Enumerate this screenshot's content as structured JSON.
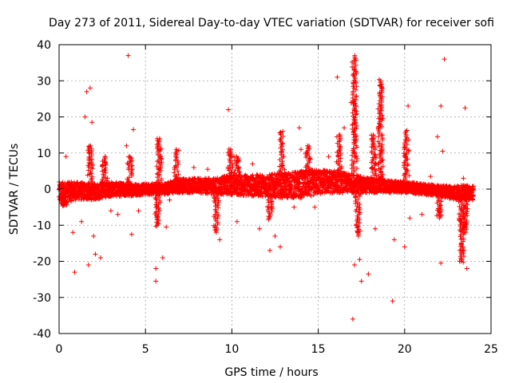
{
  "chart_data": {
    "type": "scatter",
    "title": "Day 273 of 2011, Sidereal Day-to-day VTEC variation (SDTVAR) for receiver sofi",
    "xlabel": "GPS time / hours",
    "ylabel": "SDTVAR / TECUs",
    "xlim": [
      0,
      25
    ],
    "ylim": [
      -40,
      40
    ],
    "x_ticks": [
      0,
      5,
      10,
      15,
      20,
      25
    ],
    "y_ticks": [
      -40,
      -30,
      -20,
      -10,
      0,
      10,
      20,
      30,
      40
    ],
    "grid": true,
    "marker": "+",
    "series_color": "#ff0000",
    "dense_band": {
      "x": [
        0,
        1,
        2,
        3,
        4,
        5,
        6,
        7,
        8,
        9,
        10,
        11,
        12,
        13,
        14,
        15,
        16,
        17,
        18,
        19,
        20,
        21,
        22,
        23,
        24
      ],
      "upper": [
        2,
        2,
        1.5,
        2,
        1.5,
        1.5,
        1.5,
        3,
        3,
        3,
        4,
        4,
        4,
        4.5,
        5,
        5.5,
        5,
        4,
        3,
        2.5,
        2,
        1.5,
        1,
        1,
        1
      ],
      "lower": [
        -4,
        -3,
        -3,
        -2,
        -2,
        -1.5,
        -1.5,
        -1,
        -1,
        -1.5,
        -1.5,
        -2,
        -2,
        -2.5,
        -2.5,
        -1.5,
        -1,
        -1,
        -1,
        -1,
        -1,
        -1.5,
        -2,
        -3,
        -3
      ]
    },
    "spikes": [
      {
        "x": 0.3,
        "peak": -4.5
      },
      {
        "x": 1.8,
        "peak": 12
      },
      {
        "x": 2.6,
        "peak": 9
      },
      {
        "x": 4.1,
        "peak": 9
      },
      {
        "x": 5.7,
        "peak": -10
      },
      {
        "x": 5.8,
        "peak": 14
      },
      {
        "x": 6.8,
        "peak": 11
      },
      {
        "x": 9.1,
        "peak": -12
      },
      {
        "x": 9.9,
        "peak": 11
      },
      {
        "x": 10.3,
        "peak": 9
      },
      {
        "x": 12.2,
        "peak": -8
      },
      {
        "x": 12.9,
        "peak": 16
      },
      {
        "x": 14.4,
        "peak": 12
      },
      {
        "x": 16.2,
        "peak": 15
      },
      {
        "x": 17.1,
        "peak": 37
      },
      {
        "x": 17.3,
        "peak": -13
      },
      {
        "x": 18.6,
        "peak": 30
      },
      {
        "x": 18.2,
        "peak": 15
      },
      {
        "x": 20.1,
        "peak": 16
      },
      {
        "x": 22.0,
        "peak": -8
      },
      {
        "x": 23.3,
        "peak": -20
      },
      {
        "x": 23.5,
        "peak": -12
      }
    ],
    "outliers": [
      [
        0.9,
        -23
      ],
      [
        1.5,
        20
      ],
      [
        1.6,
        27
      ],
      [
        1.8,
        28
      ],
      [
        1.9,
        18.5
      ],
      [
        1.7,
        -21
      ],
      [
        2.1,
        -18
      ],
      [
        2.4,
        -19
      ],
      [
        2.0,
        -13
      ],
      [
        2.8,
        3
      ],
      [
        4.0,
        37
      ],
      [
        4.3,
        16.5
      ],
      [
        4.2,
        -12.5
      ],
      [
        3.9,
        12
      ],
      [
        5.6,
        -22
      ],
      [
        5.6,
        -25.5
      ],
      [
        6.0,
        -19
      ],
      [
        6.2,
        -10.5
      ],
      [
        9.3,
        -14
      ],
      [
        9.8,
        22
      ],
      [
        10.3,
        -9
      ],
      [
        11.6,
        -11
      ],
      [
        12.2,
        -17
      ],
      [
        12.5,
        -13
      ],
      [
        12.8,
        -16
      ],
      [
        13.6,
        -5
      ],
      [
        13.9,
        17
      ],
      [
        14.0,
        11
      ],
      [
        16.1,
        31
      ],
      [
        16.5,
        17
      ],
      [
        16.9,
        24
      ],
      [
        17.0,
        -36
      ],
      [
        17.1,
        -21
      ],
      [
        17.4,
        -19.5
      ],
      [
        17.5,
        -25.5
      ],
      [
        17.9,
        -23.5
      ],
      [
        17.3,
        -12
      ],
      [
        18.3,
        -11
      ],
      [
        18.1,
        14
      ],
      [
        19.3,
        -31
      ],
      [
        19.4,
        -14
      ],
      [
        20.0,
        -16
      ],
      [
        20.2,
        23
      ],
      [
        20.3,
        -8
      ],
      [
        21.9,
        14.5
      ],
      [
        22.1,
        -20.5
      ],
      [
        22.3,
        36
      ],
      [
        22.1,
        23
      ],
      [
        22.2,
        10.5
      ],
      [
        23.2,
        -17
      ],
      [
        23.3,
        -19.5
      ],
      [
        23.5,
        22.5
      ],
      [
        23.6,
        -22
      ],
      [
        23.4,
        3
      ],
      [
        0.4,
        9
      ],
      [
        0.8,
        -12
      ],
      [
        1.3,
        -9
      ],
      [
        3.0,
        -6
      ],
      [
        3.4,
        -7
      ],
      [
        4.6,
        -6
      ],
      [
        6.4,
        -3
      ],
      [
        7.8,
        6
      ],
      [
        8.6,
        5.5
      ],
      [
        11.2,
        7
      ],
      [
        14.8,
        -5
      ],
      [
        15.6,
        9
      ],
      [
        21.0,
        -7
      ],
      [
        21.5,
        3.5
      ]
    ]
  }
}
